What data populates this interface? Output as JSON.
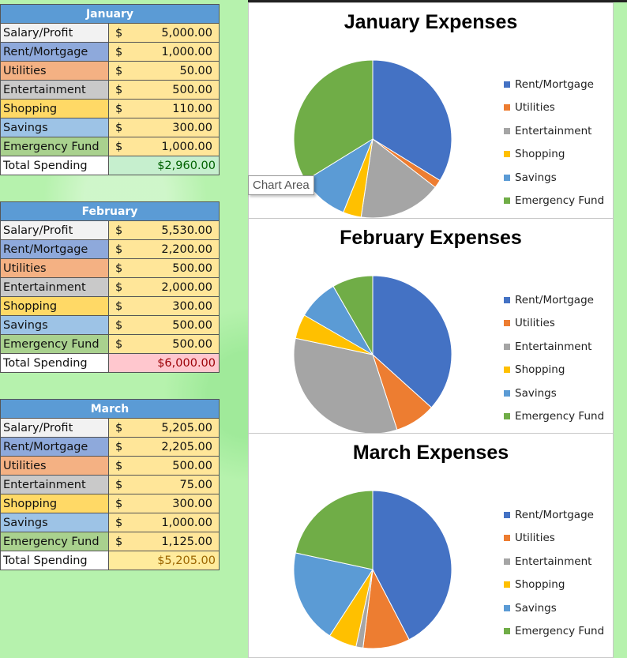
{
  "colors": {
    "rent": "#4472c4",
    "utilities": "#ed7d31",
    "entertainment": "#a5a5a5",
    "shopping": "#ffc000",
    "savings": "#5b9bd5",
    "emergency": "#70ad47"
  },
  "tooltip": "Chart Area",
  "months": [
    {
      "name": "January",
      "rows": [
        {
          "label": "Salary/Profit",
          "dollar": "$",
          "amount": "5,000.00"
        },
        {
          "label": "Rent/Mortgage",
          "dollar": "$",
          "amount": "1,000.00"
        },
        {
          "label": "Utilities",
          "dollar": "$",
          "amount": "50.00"
        },
        {
          "label": "Entertainment",
          "dollar": "$",
          "amount": "500.00"
        },
        {
          "label": "Shopping",
          "dollar": "$",
          "amount": "110.00"
        },
        {
          "label": "Savings",
          "dollar": "$",
          "amount": "300.00"
        },
        {
          "label": "Emergency Fund",
          "dollar": "$",
          "amount": "1,000.00"
        }
      ],
      "total_label": "Total Spending",
      "total": "$2,960.00"
    },
    {
      "name": "February",
      "rows": [
        {
          "label": "Salary/Profit",
          "dollar": "$",
          "amount": "5,530.00"
        },
        {
          "label": "Rent/Mortgage",
          "dollar": "$",
          "amount": "2,200.00"
        },
        {
          "label": "Utilities",
          "dollar": "$",
          "amount": "500.00"
        },
        {
          "label": "Entertainment",
          "dollar": "$",
          "amount": "2,000.00"
        },
        {
          "label": "Shopping",
          "dollar": "$",
          "amount": "300.00"
        },
        {
          "label": "Savings",
          "dollar": "$",
          "amount": "500.00"
        },
        {
          "label": "Emergency Fund",
          "dollar": "$",
          "amount": "500.00"
        }
      ],
      "total_label": "Total Spending",
      "total": "$6,000.00"
    },
    {
      "name": "March",
      "rows": [
        {
          "label": "Salary/Profit",
          "dollar": "$",
          "amount": "5,205.00"
        },
        {
          "label": "Rent/Mortgage",
          "dollar": "$",
          "amount": "2,205.00"
        },
        {
          "label": "Utilities",
          "dollar": "$",
          "amount": "500.00"
        },
        {
          "label": "Entertainment",
          "dollar": "$",
          "amount": "75.00"
        },
        {
          "label": "Shopping",
          "dollar": "$",
          "amount": "300.00"
        },
        {
          "label": "Savings",
          "dollar": "$",
          "amount": "1,000.00"
        },
        {
          "label": "Emergency Fund",
          "dollar": "$",
          "amount": "1,125.00"
        }
      ],
      "total_label": "Total Spending",
      "total": "$5,205.00"
    }
  ],
  "chart_data": [
    {
      "type": "pie",
      "title": "January Expenses",
      "categories": [
        "Rent/Mortgage",
        "Utilities",
        "Entertainment",
        "Shopping",
        "Savings",
        "Emergency Fund"
      ],
      "values": [
        1000,
        50,
        500,
        110,
        300,
        1000
      ],
      "legend": "right"
    },
    {
      "type": "pie",
      "title": "February Expenses",
      "categories": [
        "Rent/Mortgage",
        "Utilities",
        "Entertainment",
        "Shopping",
        "Savings",
        "Emergency Fund"
      ],
      "values": [
        2200,
        500,
        2000,
        300,
        500,
        500
      ],
      "legend": "right"
    },
    {
      "type": "pie",
      "title": "March Expenses",
      "categories": [
        "Rent/Mortgage",
        "Utilities",
        "Entertainment",
        "Shopping",
        "Savings",
        "Emergency Fund"
      ],
      "values": [
        2205,
        500,
        75,
        300,
        1000,
        1125
      ],
      "legend": "right"
    }
  ]
}
